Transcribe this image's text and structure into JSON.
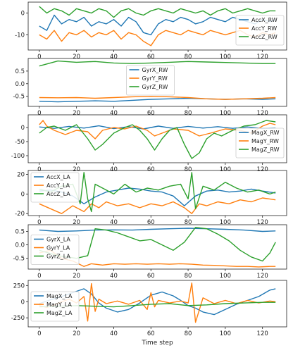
{
  "chart_data": [
    {
      "type": "line",
      "ylim": [
        -17,
        5
      ],
      "yticks": [
        -10,
        0
      ],
      "xlim": [
        -6,
        133
      ],
      "xticks": [
        0,
        20,
        40,
        60,
        80,
        100,
        120
      ],
      "legend_position": "right",
      "series": [
        {
          "name": "AccX_RW",
          "color": "#1f77b4",
          "x": [
            0,
            4,
            8,
            12,
            16,
            20,
            24,
            28,
            32,
            36,
            40,
            44,
            48,
            52,
            56,
            60,
            64,
            68,
            72,
            76,
            80,
            84,
            88,
            92,
            96,
            100,
            104,
            108,
            112,
            116,
            120,
            124,
            127
          ],
          "values": [
            -6,
            -8,
            -1,
            -5,
            -3,
            -4,
            -2,
            -6,
            -4,
            -5,
            -3,
            -6,
            -2,
            -4,
            -9,
            -10,
            -5,
            -3,
            -4,
            -2,
            -3,
            -5,
            -4,
            -2,
            -3,
            -4,
            -2,
            -3,
            -4,
            -5,
            -3,
            -4,
            -3
          ]
        },
        {
          "name": "AccY_RW",
          "color": "#ff7f0e",
          "x": [
            0,
            4,
            8,
            12,
            16,
            20,
            24,
            28,
            32,
            36,
            40,
            44,
            48,
            52,
            56,
            60,
            64,
            68,
            72,
            76,
            80,
            84,
            88,
            92,
            96,
            100,
            104,
            108,
            112,
            116,
            120,
            124,
            127
          ],
          "values": [
            -10,
            -12,
            -8,
            -13,
            -9,
            -10,
            -8,
            -11,
            -9,
            -10,
            -8,
            -12,
            -9,
            -10,
            -13,
            -15,
            -10,
            -8,
            -9,
            -10,
            -8,
            -9,
            -10,
            -8,
            -9,
            -10,
            -9,
            -8,
            -10,
            -11,
            -9,
            -10,
            -9
          ]
        },
        {
          "name": "AccZ_RW",
          "color": "#2ca02c",
          "x": [
            0,
            4,
            8,
            12,
            16,
            20,
            24,
            28,
            32,
            36,
            40,
            44,
            48,
            52,
            56,
            60,
            64,
            68,
            72,
            76,
            80,
            84,
            88,
            92,
            96,
            100,
            104,
            108,
            112,
            116,
            120,
            124,
            127
          ],
          "values": [
            3,
            0,
            2,
            1,
            -1,
            2,
            1,
            0,
            2,
            1,
            -2,
            1,
            2,
            0,
            -1,
            1,
            2,
            1,
            0,
            2,
            1,
            0,
            1,
            -1,
            1,
            2,
            0,
            1,
            2,
            1,
            0,
            1,
            1
          ]
        }
      ]
    },
    {
      "type": "line",
      "ylim": [
        -0.9,
        1.0
      ],
      "yticks": [
        -0.5,
        0.0,
        0.5
      ],
      "xlim": [
        -6,
        133
      ],
      "xticks": [
        0,
        20,
        40,
        60,
        80,
        100,
        120
      ],
      "legend_position": "center",
      "series": [
        {
          "name": "GyrX_RW",
          "color": "#1f77b4",
          "x": [
            0,
            10,
            20,
            30,
            40,
            50,
            60,
            70,
            80,
            90,
            100,
            110,
            120,
            127
          ],
          "values": [
            -0.7,
            -0.72,
            -0.7,
            -0.68,
            -0.7,
            -0.66,
            -0.62,
            -0.6,
            -0.58,
            -0.6,
            -0.62,
            -0.6,
            -0.62,
            -0.6
          ]
        },
        {
          "name": "GyrY_RW",
          "color": "#ff7f0e",
          "x": [
            0,
            10,
            20,
            30,
            40,
            50,
            60,
            70,
            80,
            90,
            100,
            110,
            120,
            127
          ],
          "values": [
            -0.55,
            -0.56,
            -0.55,
            -0.58,
            -0.55,
            -0.52,
            -0.5,
            -0.52,
            -0.55,
            -0.6,
            -0.62,
            -0.6,
            -0.58,
            -0.55
          ]
        },
        {
          "name": "GyrZ_RW",
          "color": "#2ca02c",
          "x": [
            0,
            10,
            20,
            30,
            40,
            50,
            60,
            70,
            80,
            90,
            100,
            110,
            120,
            127
          ],
          "values": [
            0.7,
            0.9,
            0.85,
            0.88,
            0.82,
            0.8,
            0.82,
            0.85,
            0.88,
            0.86,
            0.84,
            0.82,
            0.8,
            0.8
          ]
        }
      ]
    },
    {
      "type": "line",
      "ylim": [
        -125,
        45
      ],
      "yticks": [
        -100,
        -50,
        0
      ],
      "xlim": [
        -6,
        133
      ],
      "xticks": [
        0,
        20,
        40,
        60,
        80,
        100,
        120
      ],
      "legend_position": "right",
      "series": [
        {
          "name": "MagX_RW",
          "color": "#1f77b4",
          "x": [
            0,
            8,
            16,
            24,
            32,
            40,
            48,
            56,
            64,
            72,
            80,
            88,
            96,
            104,
            112,
            120,
            127
          ],
          "values": [
            2,
            -3,
            4,
            -2,
            6,
            -4,
            3,
            -5,
            5,
            -3,
            4,
            -2,
            3,
            -3,
            2,
            -4,
            -2
          ]
        },
        {
          "name": "MagY_RW",
          "color": "#ff7f0e",
          "x": [
            0,
            2,
            4,
            8,
            14,
            20,
            26,
            30,
            34,
            40,
            46,
            52,
            58,
            62,
            66,
            72,
            80,
            86,
            92,
            100,
            108,
            114,
            120,
            124,
            127
          ],
          "values": [
            10,
            25,
            5,
            -10,
            -25,
            -10,
            -15,
            -40,
            -10,
            0,
            -5,
            5,
            -10,
            -30,
            -20,
            -5,
            -10,
            -30,
            -20,
            -5,
            -10,
            -20,
            5,
            15,
            10
          ]
        },
        {
          "name": "MagZ_RW",
          "color": "#2ca02c",
          "x": [
            0,
            4,
            8,
            14,
            20,
            26,
            30,
            34,
            40,
            46,
            50,
            54,
            58,
            62,
            66,
            70,
            74,
            78,
            82,
            86,
            90,
            94,
            98,
            104,
            110,
            116,
            122,
            127
          ],
          "values": [
            -20,
            0,
            5,
            -10,
            10,
            -40,
            -80,
            -60,
            -20,
            0,
            10,
            -10,
            -40,
            -80,
            -40,
            -10,
            0,
            -60,
            -110,
            -90,
            -40,
            -20,
            -30,
            -10,
            5,
            10,
            25,
            20
          ]
        }
      ]
    },
    {
      "type": "line",
      "ylim": [
        -22,
        24
      ],
      "yticks": [
        -20,
        0,
        20
      ],
      "xlim": [
        -6,
        133
      ],
      "xticks": [
        0,
        20,
        40,
        60,
        80,
        100,
        120
      ],
      "legend_position": "top-left",
      "series": [
        {
          "name": "AccX_LA",
          "color": "#1f77b4",
          "x": [
            0,
            6,
            12,
            18,
            24,
            30,
            36,
            42,
            48,
            54,
            60,
            66,
            72,
            78,
            84,
            90,
            96,
            102,
            108,
            114,
            120,
            127
          ],
          "values": [
            3,
            4,
            2,
            -2,
            -10,
            -3,
            2,
            4,
            6,
            5,
            3,
            2,
            -2,
            -12,
            -2,
            3,
            4,
            2,
            3,
            5,
            3,
            1
          ]
        },
        {
          "name": "AccY_LA",
          "color": "#ff7f0e",
          "x": [
            0,
            6,
            12,
            18,
            24,
            28,
            32,
            36,
            42,
            48,
            54,
            60,
            66,
            72,
            78,
            82,
            86,
            90,
            96,
            102,
            108,
            114,
            120,
            127
          ],
          "values": [
            -10,
            -15,
            -20,
            -12,
            -18,
            -10,
            -14,
            -8,
            -12,
            -10,
            -14,
            -10,
            -12,
            -8,
            -14,
            -20,
            -10,
            -12,
            -8,
            -10,
            -6,
            -8,
            -4,
            -6
          ]
        },
        {
          "name": "AccZ_LA",
          "color": "#2ca02c",
          "x": [
            0,
            6,
            12,
            18,
            22,
            24,
            26,
            28,
            30,
            34,
            40,
            46,
            52,
            58,
            64,
            70,
            76,
            80,
            82,
            84,
            88,
            94,
            100,
            106,
            112,
            118,
            124,
            127
          ],
          "values": [
            5,
            2,
            8,
            10,
            -10,
            22,
            -5,
            -18,
            10,
            6,
            0,
            10,
            2,
            6,
            4,
            8,
            10,
            -5,
            22,
            -15,
            8,
            4,
            12,
            6,
            2,
            4,
            0,
            2
          ]
        }
      ]
    },
    {
      "type": "line",
      "ylim": [
        -0.9,
        0.75
      ],
      "yticks": [
        -0.5,
        0.0,
        0.5
      ],
      "xlim": [
        -6,
        133
      ],
      "xticks": [
        0,
        20,
        40,
        60,
        80,
        100,
        120
      ],
      "legend_position": "left",
      "series": [
        {
          "name": "GyrX_LA",
          "color": "#1f77b4",
          "x": [
            0,
            10,
            20,
            30,
            40,
            50,
            60,
            70,
            80,
            90,
            100,
            110,
            120,
            127
          ],
          "values": [
            0.55,
            0.5,
            0.52,
            0.55,
            0.56,
            0.55,
            0.58,
            0.6,
            0.62,
            0.6,
            0.58,
            0.55,
            0.5,
            0.52
          ]
        },
        {
          "name": "GyrY_LA",
          "color": "#ff7f0e",
          "x": [
            0,
            6,
            12,
            18,
            24,
            28,
            34,
            40,
            46,
            52,
            58,
            64,
            70,
            76,
            82,
            88,
            94,
            100,
            106,
            112,
            118,
            124,
            127
          ],
          "values": [
            -0.3,
            -0.2,
            -0.5,
            -0.6,
            -0.8,
            -0.7,
            -0.75,
            -0.7,
            -0.72,
            -0.7,
            -0.72,
            -0.7,
            -0.72,
            -0.7,
            -0.72,
            -0.75,
            -0.76,
            -0.78,
            -0.8,
            -0.8,
            -0.82,
            -0.8,
            -0.8
          ]
        },
        {
          "name": "GyrZ_LA",
          "color": "#2ca02c",
          "x": [
            0,
            10,
            20,
            26,
            30,
            36,
            42,
            48,
            54,
            60,
            66,
            72,
            78,
            84,
            90,
            96,
            102,
            108,
            114,
            120,
            124,
            127
          ],
          "values": [
            -0.2,
            -0.4,
            -0.5,
            -0.4,
            0.6,
            0.55,
            0.45,
            0.3,
            0.15,
            0.2,
            0.0,
            -0.2,
            0.1,
            0.65,
            0.6,
            0.4,
            0.15,
            -0.2,
            -0.45,
            -0.6,
            -0.3,
            0.1
          ]
        }
      ]
    },
    {
      "type": "line",
      "ylim": [
        -390,
        330
      ],
      "yticks": [
        -250,
        0,
        250
      ],
      "xlim": [
        -6,
        133
      ],
      "xticks": [
        0,
        20,
        40,
        60,
        80,
        100,
        120
      ],
      "xlabel": "Time step",
      "legend_position": "left",
      "series": [
        {
          "name": "MagX_LA",
          "color": "#1f77b4",
          "x": [
            0,
            6,
            12,
            18,
            24,
            28,
            32,
            36,
            42,
            48,
            54,
            60,
            66,
            72,
            76,
            80,
            84,
            88,
            94,
            100,
            106,
            112,
            118,
            124,
            127
          ],
          "values": [
            -30,
            30,
            80,
            140,
            200,
            120,
            -20,
            -100,
            -160,
            -120,
            -20,
            100,
            150,
            90,
            20,
            -60,
            -100,
            -160,
            -200,
            -120,
            -40,
            20,
            80,
            180,
            200
          ]
        },
        {
          "name": "MagY_LA",
          "color": "#ff7f0e",
          "x": [
            0,
            4,
            8,
            12,
            16,
            20,
            24,
            26,
            28,
            30,
            32,
            36,
            42,
            48,
            54,
            58,
            60,
            62,
            64,
            70,
            76,
            80,
            82,
            84,
            88,
            94,
            100,
            106,
            112,
            118,
            124,
            127
          ],
          "values": [
            -60,
            -90,
            -50,
            0,
            40,
            -20,
            80,
            -300,
            280,
            -150,
            40,
            -30,
            10,
            -40,
            20,
            -120,
            140,
            -80,
            20,
            -20,
            10,
            -20,
            290,
            -320,
            60,
            -30,
            20,
            -30,
            20,
            -20,
            10,
            0
          ]
        },
        {
          "name": "MagZ_LA",
          "color": "#2ca02c",
          "x": [
            0,
            10,
            20,
            30,
            40,
            50,
            60,
            70,
            80,
            90,
            100,
            110,
            120,
            127
          ],
          "values": [
            -80,
            -70,
            -60,
            -70,
            -80,
            -60,
            -40,
            -30,
            -60,
            -50,
            -30,
            -20,
            -10,
            -10
          ]
        }
      ]
    }
  ]
}
